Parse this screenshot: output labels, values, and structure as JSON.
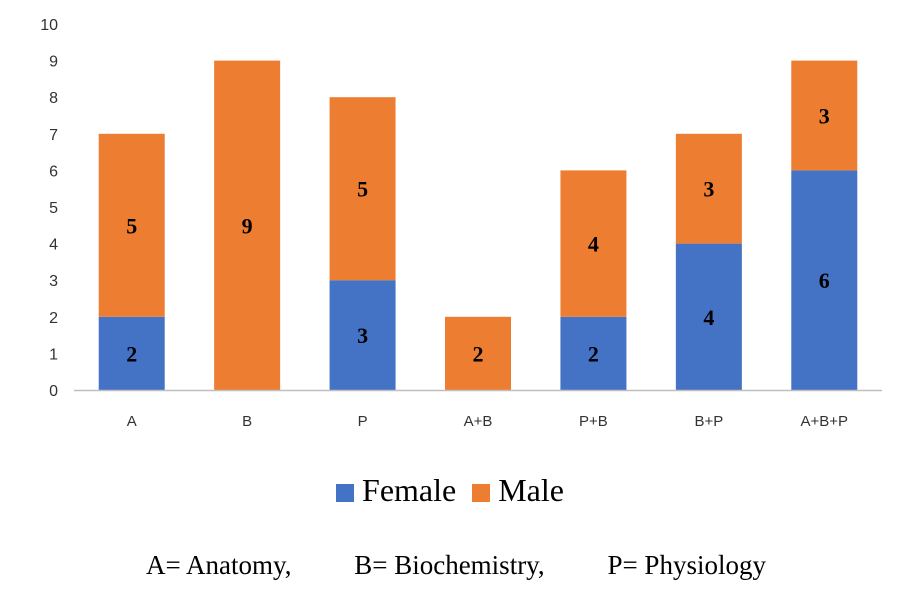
{
  "chart_data": {
    "type": "bar",
    "stacked": true,
    "categories": [
      "A",
      "B",
      "P",
      "A+B",
      "P+B",
      "B+P",
      "A+B+P"
    ],
    "series": [
      {
        "name": "Female",
        "color": "#4472C4",
        "values": [
          2,
          0,
          3,
          0,
          2,
          4,
          6
        ]
      },
      {
        "name": "Male",
        "color": "#ED7D31",
        "values": [
          5,
          9,
          5,
          2,
          4,
          3,
          3
        ]
      }
    ],
    "title": "",
    "xlabel": "",
    "ylabel": "",
    "ylim": [
      0,
      10
    ],
    "yticks": [
      0,
      1,
      2,
      3,
      4,
      5,
      6,
      7,
      8,
      9,
      10
    ],
    "grid": false,
    "legend_position": "bottom"
  },
  "legend": {
    "female_label": "Female",
    "male_label": "Male"
  },
  "footnote": {
    "anatomy": "A= Anatomy,",
    "biochemistry": "B= Biochemistry,",
    "physiology": "P= Physiology"
  }
}
